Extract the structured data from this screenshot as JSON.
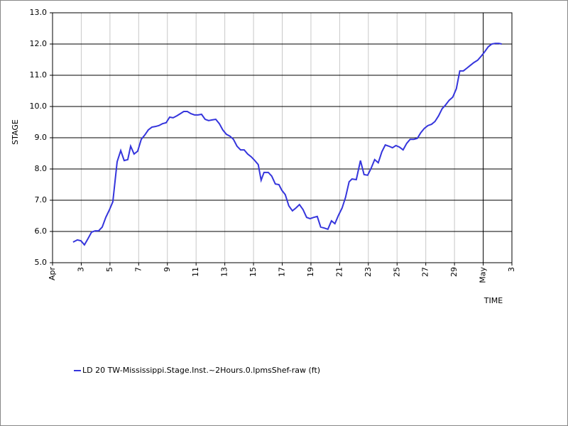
{
  "chart_data": {
    "type": "line",
    "xlabel": "TIME",
    "ylabel": "STAGE",
    "xlim": [
      1,
      33
    ],
    "ylim": [
      5,
      13
    ],
    "xticks": [
      {
        "value": 1,
        "label": "Apr"
      },
      3,
      5,
      7,
      9,
      11,
      13,
      15,
      17,
      19,
      21,
      23,
      25,
      27,
      29,
      {
        "value": 31,
        "label": "May"
      },
      {
        "value": 33,
        "label": "3"
      }
    ],
    "yticks": [
      {
        "value": 5,
        "label": "5.0"
      },
      {
        "value": 6,
        "label": "6.0"
      },
      {
        "value": 7,
        "label": "7.0"
      },
      {
        "value": 8,
        "label": "8.0"
      },
      {
        "value": 9,
        "label": "9.0"
      },
      {
        "value": 10,
        "label": "10.0"
      },
      {
        "value": 11,
        "label": "11.0"
      },
      {
        "value": 12,
        "label": "12.0"
      },
      {
        "value": 13,
        "label": "13.0"
      }
    ],
    "grid": true,
    "legend": "bottom-left",
    "x": [
      2.43,
      2.73,
      2.98,
      3.22,
      3.47,
      3.72,
      3.97,
      4.21,
      4.46,
      4.71,
      4.95,
      5.2,
      5.5,
      5.75,
      5.99,
      6.24,
      6.44,
      6.68,
      6.93,
      7.18,
      7.43,
      7.67,
      7.92,
      8.17,
      8.41,
      8.66,
      8.91,
      9.16,
      9.4,
      9.65,
      9.9,
      10.14,
      10.39,
      10.64,
      10.89,
      11.13,
      11.38,
      11.63,
      11.87,
      12.12,
      12.37,
      12.62,
      12.86,
      13.11,
      13.36,
      13.6,
      13.85,
      14.1,
      14.35,
      14.59,
      14.84,
      15.09,
      15.33,
      15.53,
      15.73,
      16.03,
      16.27,
      16.52,
      16.77,
      16.97,
      17.21,
      17.46,
      17.71,
      17.95,
      18.2,
      18.45,
      18.7,
      18.94,
      19.19,
      19.44,
      19.68,
      19.93,
      20.18,
      20.43,
      20.67,
      20.92,
      21.17,
      21.41,
      21.66,
      21.86,
      22.16,
      22.45,
      22.7,
      22.95,
      23.19,
      23.44,
      23.69,
      23.94,
      24.18,
      24.43,
      24.68,
      24.92,
      25.17,
      25.42,
      25.67,
      25.91,
      26.16,
      26.41,
      26.65,
      26.9,
      27.15,
      27.4,
      27.64,
      27.89,
      28.14,
      28.38,
      28.63,
      28.88,
      29.13,
      29.37,
      29.62,
      29.87,
      30.11,
      30.36,
      30.61,
      30.86,
      31.1,
      31.35,
      31.6,
      31.85,
      32.09,
      32.29
    ],
    "series": [
      {
        "name": "LD 20 TW-Mississippi.Stage.Inst.~2Hours.0.lpmsShef-raw (ft)",
        "color": "#3535dc",
        "values": [
          5.66,
          5.73,
          5.7,
          5.57,
          5.77,
          5.98,
          6.02,
          6.02,
          6.14,
          6.45,
          6.68,
          6.95,
          8.23,
          8.59,
          8.27,
          8.3,
          8.73,
          8.48,
          8.57,
          8.95,
          9.09,
          9.25,
          9.34,
          9.36,
          9.39,
          9.45,
          9.48,
          9.66,
          9.64,
          9.7,
          9.77,
          9.84,
          9.84,
          9.77,
          9.73,
          9.73,
          9.75,
          9.59,
          9.55,
          9.57,
          9.59,
          9.45,
          9.25,
          9.11,
          9.05,
          8.95,
          8.73,
          8.61,
          8.61,
          8.48,
          8.39,
          8.27,
          8.14,
          7.64,
          7.89,
          7.89,
          7.77,
          7.52,
          7.5,
          7.32,
          7.18,
          6.82,
          6.66,
          6.75,
          6.86,
          6.7,
          6.45,
          6.41,
          6.45,
          6.48,
          6.14,
          6.11,
          6.07,
          6.34,
          6.25,
          6.52,
          6.75,
          7.09,
          7.59,
          7.68,
          7.66,
          8.27,
          7.82,
          7.8,
          8.02,
          8.3,
          8.2,
          8.55,
          8.77,
          8.73,
          8.68,
          8.75,
          8.7,
          8.61,
          8.82,
          8.95,
          8.95,
          8.98,
          9.16,
          9.3,
          9.39,
          9.43,
          9.52,
          9.7,
          9.93,
          10.05,
          10.2,
          10.3,
          10.57,
          11.14,
          11.14,
          11.23,
          11.32,
          11.41,
          11.48,
          11.61,
          11.75,
          11.91,
          12.0,
          12.02,
          12.02,
          12.0
        ]
      }
    ]
  }
}
